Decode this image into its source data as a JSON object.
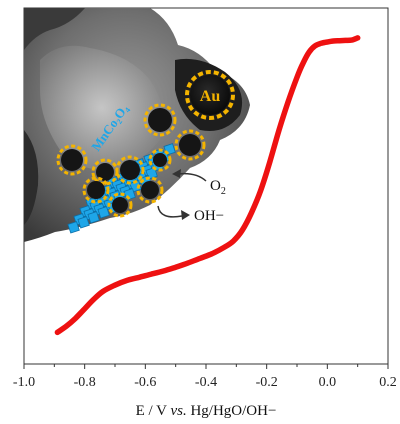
{
  "chart_data": {
    "type": "line",
    "xlabel_parts": {
      "pre": "E / V ",
      "italic": "vs.",
      "post": " Hg/HgO/OH−"
    },
    "xlim": [
      -1.0,
      0.2
    ],
    "ylim": [
      0,
      1
    ],
    "x_ticks": [
      "-1.0",
      "-0.8",
      "-0.6",
      "-0.4",
      "-0.2",
      "0.0",
      "0.2"
    ],
    "x_tick_values": [
      -1.0,
      -0.8,
      -0.6,
      -0.4,
      -0.2,
      0.0,
      0.2
    ],
    "grid": false,
    "series": [
      {
        "color": "#ee1111",
        "x": [
          -0.89,
          -0.86,
          -0.83,
          -0.8,
          -0.77,
          -0.74,
          -0.7,
          -0.66,
          -0.62,
          -0.58,
          -0.54,
          -0.5,
          -0.46,
          -0.42,
          -0.38,
          -0.34,
          -0.31,
          -0.28,
          -0.25,
          -0.22,
          -0.19,
          -0.16,
          -0.13,
          -0.1,
          -0.08,
          -0.06,
          -0.04,
          -0.02,
          0.0,
          0.02,
          0.04,
          0.06,
          0.08,
          0.1
        ],
        "y": [
          0.04,
          0.06,
          0.085,
          0.115,
          0.145,
          0.17,
          0.19,
          0.205,
          0.215,
          0.225,
          0.235,
          0.247,
          0.26,
          0.275,
          0.29,
          0.31,
          0.33,
          0.365,
          0.42,
          0.49,
          0.58,
          0.68,
          0.77,
          0.85,
          0.895,
          0.93,
          0.95,
          0.958,
          0.962,
          0.965,
          0.966,
          0.967,
          0.968,
          0.975
        ]
      }
    ]
  },
  "inset": {
    "au_label": "Au",
    "mnco_label": "MnCo₂O₄",
    "o2_label": "O",
    "o2_sub": "2",
    "oh_label": "OH−",
    "au_color": "#f4b400",
    "cube_color": "#1ea6e8"
  }
}
